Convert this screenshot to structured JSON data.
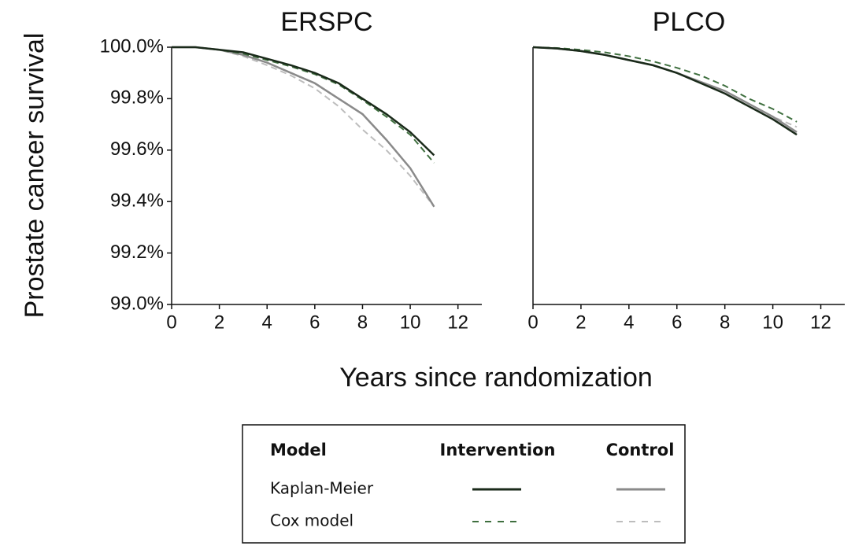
{
  "chart_data": [
    {
      "type": "line",
      "title": "ERSPC",
      "x": [
        0,
        1,
        2,
        3,
        4,
        5,
        6,
        7,
        8,
        9,
        10,
        11
      ],
      "xlim": [
        0,
        13
      ],
      "xticks": [
        0,
        2,
        4,
        6,
        8,
        10,
        12
      ],
      "ylim": [
        99,
        100
      ],
      "yticks": [
        {
          "value": 99,
          "label": "99.0%"
        },
        {
          "value": 99.2,
          "label": "99.2%"
        },
        {
          "value": 99.4,
          "label": "99.4%"
        },
        {
          "value": 99.6,
          "label": "99.6%"
        },
        {
          "value": 99.8,
          "label": "99.8%"
        },
        {
          "value": 100,
          "label": "100.0%"
        }
      ],
      "series": [
        {
          "color": "#bdbdbd",
          "dashed": true,
          "values": [
            100,
            100,
            99.99,
            99.965,
            99.93,
            99.89,
            99.84,
            99.77,
            99.68,
            99.6,
            99.5,
            99.38
          ]
        },
        {
          "color": "#8a8a8a",
          "dashed": false,
          "values": [
            100,
            100,
            99.99,
            99.97,
            99.94,
            99.9,
            99.86,
            99.8,
            99.74,
            99.64,
            99.53,
            99.38
          ]
        },
        {
          "color": "#3f6f3f",
          "dashed": true,
          "values": [
            100,
            100,
            99.99,
            99.975,
            99.95,
            99.925,
            99.895,
            99.855,
            99.795,
            99.73,
            99.66,
            99.55
          ]
        },
        {
          "color": "#1a2a1a",
          "dashed": false,
          "values": [
            100,
            100,
            99.99,
            99.98,
            99.955,
            99.93,
            99.9,
            99.86,
            99.8,
            99.74,
            99.67,
            99.58
          ]
        }
      ]
    },
    {
      "type": "line",
      "title": "PLCO",
      "x": [
        0,
        1,
        2,
        3,
        4,
        5,
        6,
        7,
        8,
        9,
        10,
        11
      ],
      "xlim": [
        0,
        13
      ],
      "xticks": [
        0,
        2,
        4,
        6,
        8,
        10,
        12
      ],
      "ylim": [
        99,
        100
      ],
      "series": [
        {
          "color": "#bdbdbd",
          "dashed": true,
          "values": [
            100,
            99.995,
            99.985,
            99.97,
            99.95,
            99.93,
            99.9,
            99.86,
            99.82,
            99.77,
            99.73,
            99.69
          ]
        },
        {
          "color": "#8a8a8a",
          "dashed": false,
          "values": [
            100,
            99.995,
            99.985,
            99.97,
            99.95,
            99.93,
            99.9,
            99.865,
            99.83,
            99.78,
            99.73,
            99.67
          ]
        },
        {
          "color": "#3f6f3f",
          "dashed": true,
          "values": [
            100,
            99.997,
            99.99,
            99.98,
            99.965,
            99.945,
            99.92,
            99.89,
            99.85,
            99.8,
            99.76,
            99.71
          ]
        },
        {
          "color": "#1a2a1a",
          "dashed": false,
          "values": [
            100,
            99.995,
            99.985,
            99.97,
            99.95,
            99.93,
            99.9,
            99.86,
            99.82,
            99.77,
            99.72,
            99.66
          ]
        }
      ]
    }
  ],
  "ylabel": "Prostate cancer survival",
  "xlabel": "Years since randomization",
  "legend": {
    "headers": [
      "Model",
      "Intervention",
      "Control"
    ],
    "rows": [
      "Kaplan-Meier",
      "Cox model"
    ]
  }
}
